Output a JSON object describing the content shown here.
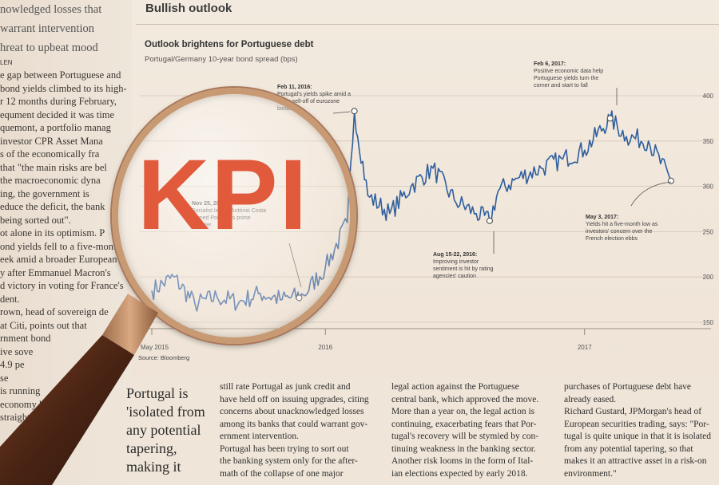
{
  "left_column": {
    "lines": [
      "nowledged losses that",
      "warrant intervention",
      "hreat to upbeat mood",
      "LEN",
      "e gap between Portuguese and",
      "bond yields climbed to its high-",
      "r 12 months during February,",
      "equment decided it was time",
      "quemont, a portfolio manag",
      "investor CPR Asset Mana",
      "s of the economically fra",
      "that \"the main risks are bel",
      "the macroeconomic dyna",
      "ing, the government is",
      "educe the deficit, the bank",
      "being sorted out\".",
      "ot alone in its optimism. P",
      "ond yields fell to a five-mont",
      "eek amid a broader European",
      "y after Emmanuel Macron's",
      "d victory in voting for France's",
      "dent.",
      "rown, head of sovereign de",
      "at Citi, points out that",
      "rnment bond",
      "ive sove",
      "4.9 pe",
      "se",
      "is running",
      "economy has",
      "straight quarters,"
    ]
  },
  "chart_panel": {
    "section_title": "Bullish outlook",
    "title": "Outlook brightens for Portuguese debt",
    "subtitle": "Portugal/Germany 10-year bond spread (bps)",
    "source": "Source: Bloomberg"
  },
  "magnifier": {
    "text": "KPI"
  },
  "chart_data": {
    "type": "line",
    "title": "Outlook brightens for Portuguese debt",
    "ylabel": "Portugal/Germany 10-year bond spread (bps)",
    "ylim": [
      150,
      400
    ],
    "yticks": [
      "400",
      "350",
      "300",
      "250",
      "200",
      "150"
    ],
    "xticks": [
      "May 2015",
      "2016",
      "2017"
    ],
    "series": [
      {
        "x": [
          "2015-05",
          "2015-06",
          "2015-07",
          "2015-08",
          "2015-09",
          "2015-10",
          "2015-11",
          "2015-12",
          "2016-01",
          "2016-02",
          "2016-02-11",
          "2016-03",
          "2016-04",
          "2016-05",
          "2016-06",
          "2016-07",
          "2016-08",
          "2016-08-20",
          "2016-09",
          "2016-10",
          "2016-11",
          "2016-12",
          "2017-01",
          "2017-02-06",
          "2017-03",
          "2017-04",
          "2017-05-03"
        ],
        "values": [
          185,
          200,
          170,
          178,
          172,
          182,
          175,
          180,
          210,
          260,
          383,
          290,
          270,
          300,
          320,
          285,
          270,
          262,
          295,
          310,
          320,
          330,
          340,
          375,
          355,
          350,
          306
        ]
      }
    ],
    "annotations": [
      {
        "date": "Feb 11, 2016:",
        "text": "Portugal's yields spike amid a wider sell-off of eurozone bonds"
      },
      {
        "date": "Nov 25, 2015:",
        "text": "Socialist leader António Costa named Portugal's prime minister"
      },
      {
        "date": "Aug 15-22, 2016:",
        "text": "Improving investor sentiment is hit by rating agencies' caution"
      },
      {
        "date": "Feb 6, 2017:",
        "text": "Positive economic data help Portuguese yields turn the corner and start to fall"
      },
      {
        "date": "May 3, 2017:",
        "text": "Yields hit a five-month low as investors' concern over the French election ebbs"
      }
    ]
  },
  "sidebar_quote": {
    "text": "Portugal is 'isolated from any potential tapering, making it"
  },
  "columns": [
    {
      "lines": [
        "still rate Portugal as junk credit and",
        "have held off on issuing upgrades, citing",
        "concerns about unacknowledged losses",
        "among its banks that could warrant gov-",
        "ernment intervention.",
        "Portugal has been trying to sort out",
        "the banking system only for the after-",
        "math of the collapse of one major"
      ]
    },
    {
      "lines": [
        "legal action against the Portuguese",
        "central bank, which approved the move.",
        "More than a year on, the legal action is",
        "continuing, exacerbating fears that Por-",
        "tugal's recovery will be stymied by con-",
        "tinuing weakness in the banking sector.",
        "Another risk looms in the form of Ital-",
        "ian elections expected by early 2018."
      ]
    },
    {
      "lines": [
        "purchases of Portuguese debt have",
        "already eased.",
        "Richard Gustard, JPMorgan's head of",
        "European securities trading, says: \"Por-",
        "tugal is quite unique in that it is isolated",
        "from any potential tapering, so that",
        "makes it an attractive asset in a risk-on",
        "environment.\""
      ]
    }
  ],
  "colors": {
    "line": "#2f5f9e",
    "kpi": "#e05a3b",
    "paper": "#efe4d7",
    "magnifier_rim": "#c89a74",
    "handle": "#5a2f1c"
  }
}
